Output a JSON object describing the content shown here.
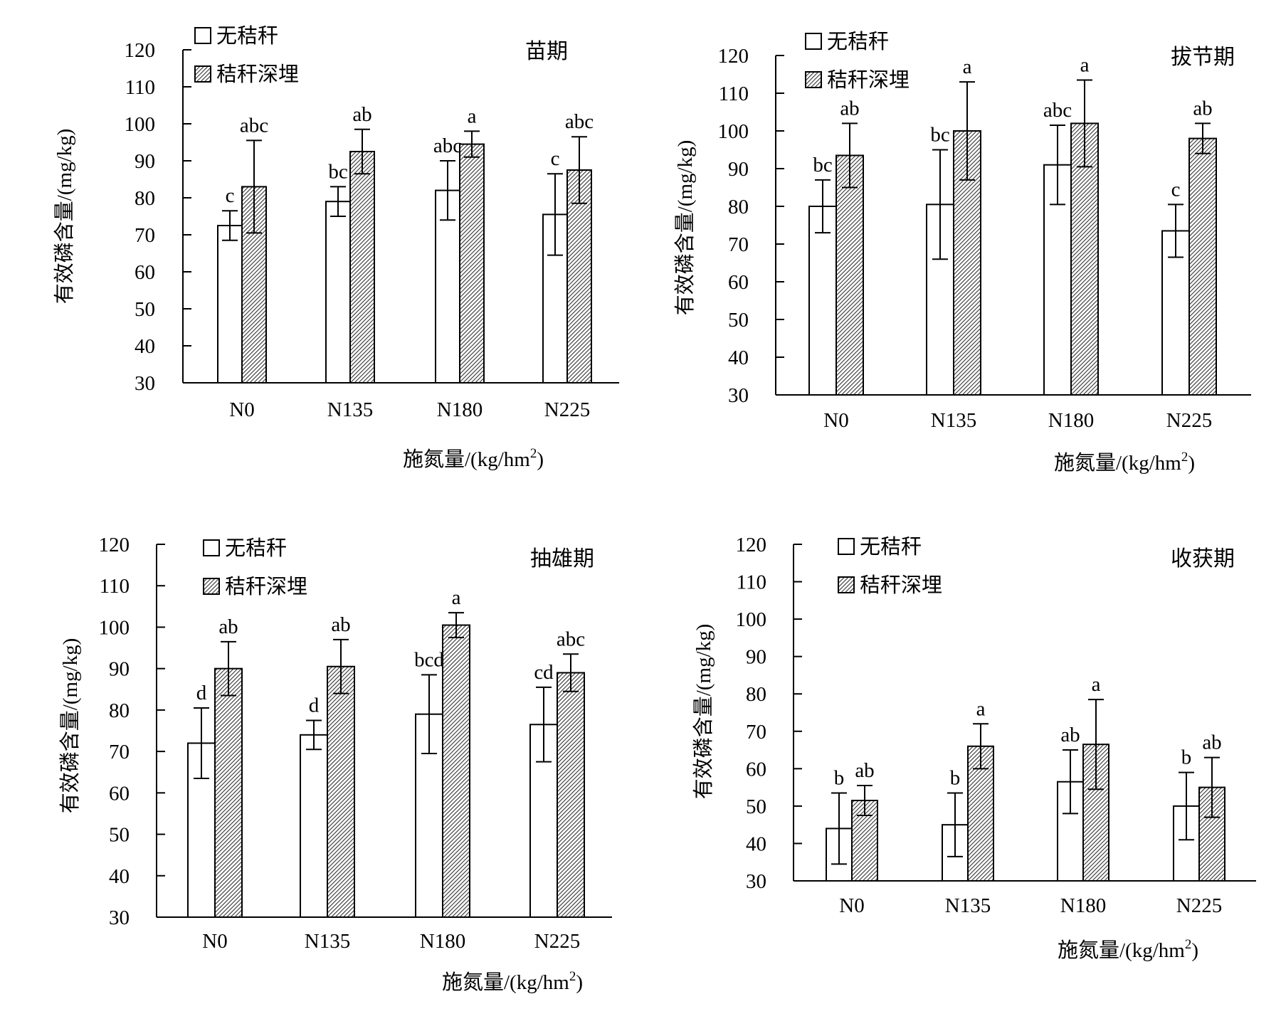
{
  "chart_data": [
    {
      "type": "bar",
      "title": "苗期",
      "xlabel": "施氮量/(kg/hm",
      "xlabel_sup": "2",
      "xlabel_suffix": ")",
      "ylabel": "有效磷含量/(mg/kg)",
      "ylim": [
        30,
        120
      ],
      "yticks": [
        30,
        40,
        50,
        60,
        70,
        80,
        90,
        100,
        110,
        120
      ],
      "categories": [
        "N0",
        "N135",
        "N180",
        "N225"
      ],
      "legend_position": "top-left",
      "series": [
        {
          "name": "无秸秆",
          "pattern": "white",
          "values": [
            72.5,
            79,
            82,
            75.5
          ],
          "errors": [
            4,
            4,
            8,
            11
          ],
          "letters": [
            "c",
            "bc",
            "abc",
            "c"
          ]
        },
        {
          "name": "秸秆深埋",
          "pattern": "hatched",
          "values": [
            83,
            92.5,
            94.5,
            87.5
          ],
          "errors": [
            12.5,
            6,
            3.5,
            9
          ],
          "letters": [
            "abc",
            "ab",
            "a",
            "abc"
          ]
        }
      ]
    },
    {
      "type": "bar",
      "title": "拔节期",
      "xlabel": "施氮量/(kg/hm",
      "xlabel_sup": "2",
      "xlabel_suffix": ")",
      "ylabel": "有效磷含量/(mg/kg)",
      "ylim": [
        30,
        120
      ],
      "yticks": [
        30,
        40,
        50,
        60,
        70,
        80,
        90,
        100,
        110,
        120
      ],
      "categories": [
        "N0",
        "N135",
        "N180",
        "N225"
      ],
      "legend_position": "top-left",
      "series": [
        {
          "name": "无秸秆",
          "pattern": "white",
          "values": [
            80,
            80.5,
            91,
            73.5
          ],
          "errors": [
            7,
            14.5,
            10.5,
            7
          ],
          "letters": [
            "bc",
            "bc",
            "abc",
            "c"
          ]
        },
        {
          "name": "秸秆深埋",
          "pattern": "hatched",
          "values": [
            93.5,
            100,
            102,
            98
          ],
          "errors": [
            8.5,
            13,
            11.5,
            4
          ],
          "letters": [
            "ab",
            "a",
            "a",
            "ab"
          ]
        }
      ]
    },
    {
      "type": "bar",
      "title": "抽雄期",
      "xlabel": "施氮量/(kg/hm",
      "xlabel_sup": "2",
      "xlabel_suffix": ")",
      "ylabel": "有效磷含量/(mg/kg)",
      "ylim": [
        30,
        120
      ],
      "yticks": [
        30,
        40,
        50,
        60,
        70,
        80,
        90,
        100,
        110,
        120
      ],
      "categories": [
        "N0",
        "N135",
        "N180",
        "N225"
      ],
      "legend_position": "top-left",
      "series": [
        {
          "name": "无秸秆",
          "pattern": "white",
          "values": [
            72,
            74,
            79,
            76.5
          ],
          "errors": [
            8.5,
            3.5,
            9.5,
            9
          ],
          "letters": [
            "d",
            "d",
            "bcd",
            "cd"
          ]
        },
        {
          "name": "秸秆深埋",
          "pattern": "hatched",
          "values": [
            90,
            90.5,
            100.5,
            89
          ],
          "errors": [
            6.5,
            6.5,
            3,
            4.5
          ],
          "letters": [
            "ab",
            "ab",
            "a",
            "abc"
          ]
        }
      ]
    },
    {
      "type": "bar",
      "title": "收获期",
      "xlabel": "施氮量/(kg/hm",
      "xlabel_sup": "2",
      "xlabel_suffix": ")",
      "ylabel": "有效磷含量/(mg/kg)",
      "ylim": [
        30,
        120
      ],
      "yticks": [
        30,
        40,
        50,
        60,
        70,
        80,
        90,
        100,
        110,
        120
      ],
      "categories": [
        "N0",
        "N135",
        "N180",
        "N225"
      ],
      "legend_position": "top-left",
      "series": [
        {
          "name": "无秸秆",
          "pattern": "white",
          "values": [
            44,
            45,
            56.5,
            50
          ],
          "errors": [
            9.5,
            8.5,
            8.5,
            9
          ],
          "letters": [
            "b",
            "b",
            "ab",
            "b"
          ]
        },
        {
          "name": "秸秆深埋",
          "pattern": "hatched",
          "values": [
            51.5,
            66,
            66.5,
            55
          ],
          "errors": [
            4,
            6,
            12,
            8
          ],
          "letters": [
            "ab",
            "a",
            "a",
            "ab"
          ]
        }
      ]
    }
  ]
}
